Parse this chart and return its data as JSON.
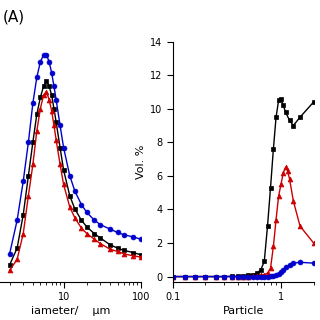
{
  "left_plot": {
    "xlabel_parts": [
      "iameter/",
      "μm"
    ],
    "xlim": [
      1.5,
      100
    ],
    "ylim": [
      -0.05,
      2.1
    ],
    "black_x": [
      2.0,
      2.5,
      3.0,
      3.5,
      4.0,
      4.5,
      5.0,
      5.5,
      6.0,
      6.5,
      7.0,
      7.5,
      8.0,
      9.0,
      10.0,
      12.0,
      14.0,
      17.0,
      20.0,
      25.0,
      30.0,
      40.0,
      50.0,
      60.0,
      80.0,
      100.0
    ],
    "black_y": [
      0.1,
      0.25,
      0.55,
      0.9,
      1.2,
      1.45,
      1.6,
      1.7,
      1.75,
      1.7,
      1.62,
      1.5,
      1.38,
      1.15,
      0.95,
      0.72,
      0.6,
      0.5,
      0.44,
      0.38,
      0.34,
      0.28,
      0.25,
      0.23,
      0.21,
      0.19
    ],
    "red_x": [
      2.0,
      2.5,
      3.0,
      3.5,
      4.0,
      4.5,
      5.0,
      5.5,
      6.0,
      6.5,
      7.0,
      7.5,
      8.0,
      9.0,
      10.0,
      12.0,
      14.0,
      17.0,
      20.0,
      25.0,
      30.0,
      40.0,
      50.0,
      60.0,
      80.0,
      100.0
    ],
    "red_y": [
      0.05,
      0.15,
      0.38,
      0.72,
      1.0,
      1.3,
      1.5,
      1.62,
      1.65,
      1.58,
      1.48,
      1.35,
      1.22,
      1.0,
      0.82,
      0.62,
      0.52,
      0.43,
      0.38,
      0.33,
      0.29,
      0.24,
      0.22,
      0.2,
      0.18,
      0.17
    ],
    "blue_x": [
      2.0,
      2.5,
      3.0,
      3.5,
      4.0,
      4.5,
      5.0,
      5.5,
      6.0,
      6.5,
      7.0,
      7.5,
      8.0,
      9.0,
      10.0,
      12.0,
      14.0,
      17.0,
      20.0,
      25.0,
      30.0,
      40.0,
      50.0,
      60.0,
      80.0,
      100.0
    ],
    "blue_y": [
      0.2,
      0.5,
      0.85,
      1.2,
      1.55,
      1.78,
      1.92,
      1.98,
      1.98,
      1.92,
      1.82,
      1.7,
      1.58,
      1.35,
      1.15,
      0.9,
      0.76,
      0.64,
      0.57,
      0.5,
      0.46,
      0.42,
      0.39,
      0.37,
      0.35,
      0.33
    ]
  },
  "right_plot": {
    "xlabel": "Particle",
    "ylabel": "Vol. %",
    "xlim": [
      0.1,
      2.0
    ],
    "ylim": [
      -0.3,
      14
    ],
    "yticks": [
      0,
      2,
      4,
      6,
      8,
      10,
      12,
      14
    ],
    "black_x": [
      0.1,
      0.13,
      0.16,
      0.2,
      0.25,
      0.3,
      0.35,
      0.4,
      0.45,
      0.5,
      0.55,
      0.6,
      0.65,
      0.7,
      0.75,
      0.8,
      0.85,
      0.9,
      0.95,
      1.0,
      1.05,
      1.1,
      1.2,
      1.3,
      1.5,
      2.0
    ],
    "black_y": [
      0.0,
      0.0,
      0.0,
      0.0,
      0.0,
      0.0,
      0.02,
      0.02,
      0.05,
      0.08,
      0.12,
      0.2,
      0.4,
      0.9,
      3.0,
      5.3,
      7.6,
      9.5,
      10.5,
      10.6,
      10.2,
      9.8,
      9.3,
      9.0,
      9.5,
      10.4
    ],
    "red_x": [
      0.1,
      0.13,
      0.16,
      0.2,
      0.25,
      0.3,
      0.35,
      0.4,
      0.45,
      0.5,
      0.55,
      0.6,
      0.65,
      0.7,
      0.75,
      0.8,
      0.85,
      0.9,
      0.95,
      1.0,
      1.05,
      1.1,
      1.15,
      1.2,
      1.3,
      1.5,
      2.0
    ],
    "red_y": [
      0.0,
      0.0,
      0.0,
      0.0,
      0.0,
      0.0,
      0.0,
      0.0,
      0.0,
      0.0,
      0.02,
      0.05,
      0.08,
      0.12,
      0.2,
      0.5,
      1.8,
      3.4,
      4.8,
      5.5,
      6.2,
      6.5,
      6.3,
      5.8,
      4.5,
      3.0,
      2.0
    ],
    "blue_x": [
      0.1,
      0.13,
      0.16,
      0.2,
      0.25,
      0.3,
      0.35,
      0.4,
      0.45,
      0.5,
      0.55,
      0.6,
      0.65,
      0.7,
      0.75,
      0.8,
      0.85,
      0.9,
      0.95,
      1.0,
      1.05,
      1.1,
      1.2,
      1.3,
      1.5,
      2.0
    ],
    "blue_y": [
      0.0,
      0.0,
      0.0,
      0.0,
      0.0,
      0.0,
      0.0,
      0.0,
      0.0,
      0.0,
      0.0,
      0.0,
      0.0,
      0.0,
      0.0,
      0.02,
      0.05,
      0.1,
      0.15,
      0.25,
      0.4,
      0.55,
      0.7,
      0.8,
      0.85,
      0.8
    ]
  },
  "label_A": "(A)",
  "black_color": "#000000",
  "red_color": "#cc0000",
  "blue_color": "#0000cc",
  "marker_size": 3.5,
  "linewidth": 1.0,
  "bg_color": "#ffffff",
  "fontsize_label": 8,
  "fontsize_tick": 7,
  "fontsize_A": 11
}
